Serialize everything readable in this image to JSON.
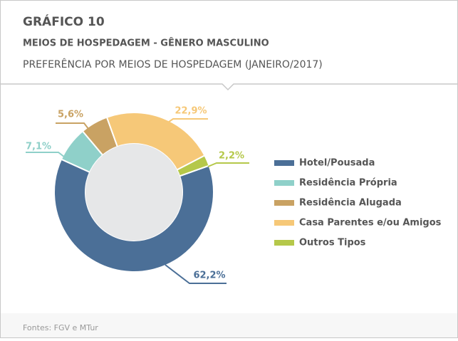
{
  "chart_data": {
    "type": "donut",
    "title": "GRÁFICO 10",
    "subtitle": "MEIOS DE HOSPEDAGEM - GÊNERO MASCULINO",
    "description": "PREFERÊNCIA POR MEIOS DE HOSPEDAGEM (JANEIRO/2017)",
    "categories": [
      "Hotel/Pousada",
      "Residência Própria",
      "Residência Alugada",
      "Casa Parentes e/ou Amigos",
      "Outros Tipos"
    ],
    "values": [
      62.2,
      7.1,
      5.6,
      22.9,
      2.2
    ],
    "value_labels": [
      "62,2%",
      "7,1%",
      "5,6%",
      "22,9%",
      "2,2%"
    ],
    "colors": [
      "#4b6f97",
      "#8fd0c9",
      "#c9a263",
      "#f6c878",
      "#b5c84a"
    ],
    "legend": "right",
    "source": "Fontes: FGV e MTur"
  }
}
